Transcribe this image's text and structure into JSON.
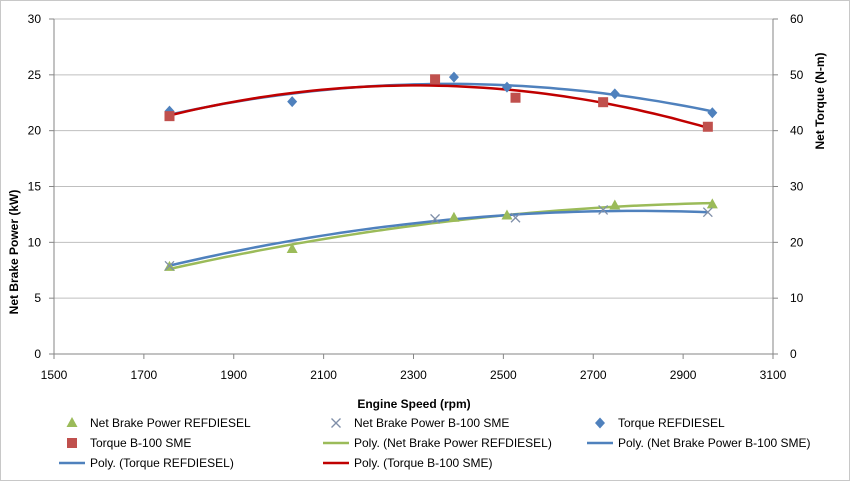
{
  "chart_data": {
    "type": "scatter",
    "title": "",
    "xlabel": "Engine Speed (rpm)",
    "ylabel_left": "Net Brake Power (kW)",
    "ylabel_right": "Net Torque  (N-m)",
    "xlim": [
      1500,
      3100
    ],
    "ylim_left": [
      0,
      30
    ],
    "ylim_right": [
      0,
      60
    ],
    "x_ticks": [
      "1500",
      "1700",
      "1900",
      "2100",
      "2300",
      "2500",
      "2700",
      "2900",
      "3100"
    ],
    "y_left_ticks": [
      "0",
      "5",
      "10",
      "15",
      "20",
      "25",
      "30"
    ],
    "y_right_ticks": [
      "0",
      "10",
      "20",
      "30",
      "40",
      "50",
      "60"
    ],
    "grid": "horizontal",
    "legend_position": "bottom",
    "series": [
      {
        "name": "Net Brake Power REFDIESEL",
        "axis": "left",
        "marker": "triangle",
        "color": "#9bbb59",
        "x": [
          1757,
          2030,
          2390,
          2508,
          2748,
          2965
        ],
        "y": [
          7.8,
          9.4,
          12.2,
          12.4,
          13.3,
          13.4
        ]
      },
      {
        "name": "Net Brake Power B-100 SME",
        "axis": "left",
        "marker": "x",
        "color": "#7f8fa9",
        "x": [
          1757,
          2348,
          2527,
          2722,
          2955
        ],
        "y": [
          7.9,
          12.1,
          12.2,
          12.9,
          12.7
        ]
      },
      {
        "name": "Torque REFDIESEL",
        "axis": "right",
        "marker": "diamond",
        "color": "#4f81bd",
        "x": [
          1757,
          2030,
          2390,
          2508,
          2748,
          2965
        ],
        "y": [
          43.5,
          45.2,
          49.6,
          47.8,
          46.6,
          43.2
        ]
      },
      {
        "name": "Torque B-100 SME",
        "axis": "right",
        "marker": "square",
        "color": "#c0504d",
        "x": [
          1757,
          2348,
          2527,
          2722,
          2955
        ],
        "y": [
          42.6,
          49.2,
          45.9,
          45.1,
          40.7
        ]
      }
    ],
    "trendlines": [
      {
        "name": "Poly. (Net Brake Power REFDIESEL)",
        "of": "Net Brake Power REFDIESEL",
        "axis": "left",
        "color": "#9bbb59"
      },
      {
        "name": "Poly. (Net Brake Power B-100 SME)",
        "of": "Net Brake Power B-100 SME",
        "axis": "left",
        "color": "#4f81bd"
      },
      {
        "name": "Poly. (Torque REFDIESEL)",
        "of": "Torque REFDIESEL",
        "axis": "right",
        "color": "#4f81bd"
      },
      {
        "name": "Poly. (Torque B-100 SME)",
        "of": "Torque B-100 SME",
        "axis": "right",
        "color": "#c00000"
      }
    ]
  }
}
